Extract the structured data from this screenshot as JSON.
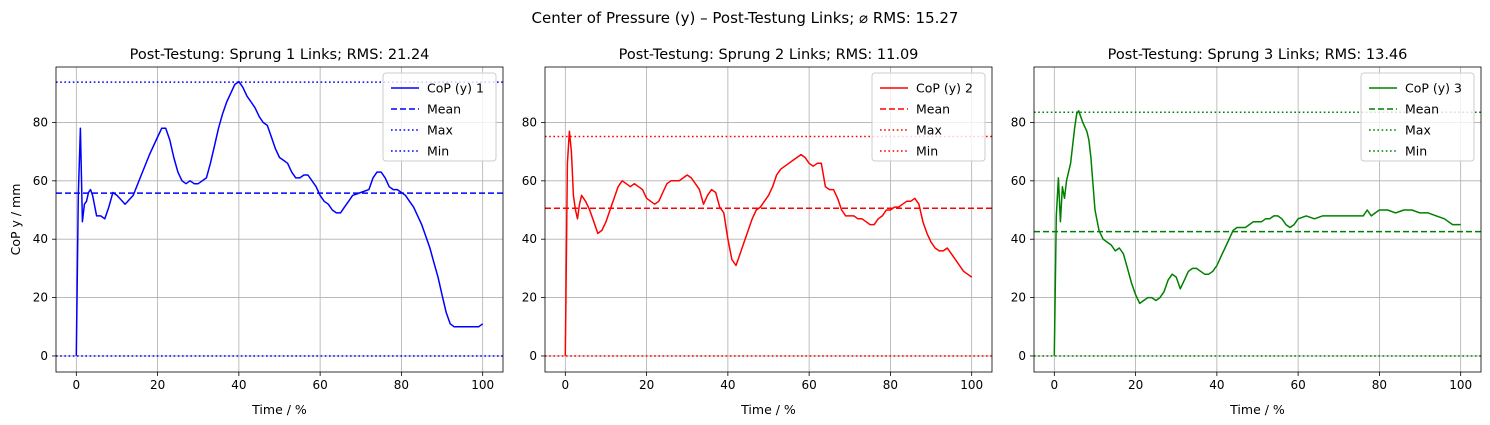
{
  "suptitle": "Center of Pressure (y) – Post-Testung Links; ⌀ RMS: 15.27",
  "chart_data": [
    {
      "type": "line",
      "title": "Post-Testung: Sprung 1 Links; RMS: 21.24",
      "xlabel": "Time / %",
      "ylabel": "CoP y / mm",
      "xlim": [
        -5,
        105
      ],
      "ylim": [
        -5.5,
        99
      ],
      "xticks": [
        0,
        20,
        40,
        60,
        80,
        100
      ],
      "yticks": [
        0,
        20,
        40,
        60,
        80
      ],
      "grid": true,
      "legend_position": "upper right",
      "color": "#0000ff",
      "series": [
        {
          "name": "CoP (y) 1",
          "style": "solid",
          "x": [
            0,
            0.5,
            1,
            1.5,
            2,
            2.5,
            3,
            3.5,
            4,
            5,
            6,
            7,
            8,
            9,
            10,
            12,
            14,
            16,
            18,
            20,
            21,
            22,
            23,
            24,
            25,
            26,
            27,
            28,
            29,
            30,
            32,
            33,
            34,
            35,
            36,
            37,
            38,
            39,
            40,
            41,
            42,
            43,
            44,
            45,
            46,
            47,
            48,
            49,
            50,
            51,
            52,
            53,
            54,
            55,
            56,
            57,
            58,
            59,
            60,
            61,
            62,
            63,
            64,
            65,
            66,
            67,
            68,
            70,
            72,
            73,
            74,
            75,
            76,
            77,
            78,
            79,
            80,
            81,
            82,
            83,
            84,
            85,
            86,
            87,
            88,
            89,
            90,
            91,
            92,
            93,
            94,
            95,
            96,
            97,
            98,
            99,
            100
          ],
          "y": [
            0,
            55,
            78,
            46,
            52,
            53,
            56,
            57,
            55,
            48,
            48,
            47,
            51,
            56,
            55,
            52,
            55,
            62,
            69,
            75,
            78,
            78,
            74,
            68,
            63,
            60,
            59,
            60,
            59,
            59,
            61,
            66,
            72,
            78,
            83,
            87,
            90,
            93,
            94,
            92,
            89,
            87,
            85,
            82,
            80,
            79,
            75,
            71,
            68,
            67,
            66,
            63,
            61,
            61,
            62,
            62,
            60,
            58,
            55,
            53,
            52,
            50,
            49,
            49,
            51,
            53,
            55,
            56,
            57,
            61,
            63,
            63,
            61,
            58,
            57,
            57,
            56,
            55,
            53,
            51,
            48,
            45,
            41,
            37,
            32,
            27,
            21,
            15,
            11,
            10,
            10,
            10,
            10,
            10,
            10,
            10,
            11
          ]
        },
        {
          "name": "Mean",
          "style": "dashed",
          "y_const": 55.8
        },
        {
          "name": "Max",
          "style": "dotted",
          "y_const": 93.8
        },
        {
          "name": "Min",
          "style": "dotted",
          "y_const": 0
        }
      ]
    },
    {
      "type": "line",
      "title": "Post-Testung: Sprung 2 Links; RMS: 11.09",
      "xlabel": "Time / %",
      "ylabel": "",
      "xlim": [
        -5,
        105
      ],
      "ylim": [
        -5.5,
        99
      ],
      "xticks": [
        0,
        20,
        40,
        60,
        80,
        100
      ],
      "yticks": [
        0,
        20,
        40,
        60,
        80
      ],
      "grid": true,
      "legend_position": "upper right",
      "color": "#ff0000",
      "series": [
        {
          "name": "CoP (y) 2",
          "style": "solid",
          "x": [
            0,
            0.5,
            1,
            1.5,
            2,
            2.5,
            3,
            3.5,
            4,
            5,
            6,
            7,
            8,
            9,
            10,
            11,
            12,
            13,
            14,
            15,
            16,
            17,
            18,
            19,
            20,
            21,
            22,
            23,
            24,
            25,
            26,
            27,
            28,
            29,
            30,
            31,
            32,
            33,
            34,
            35,
            36,
            37,
            38,
            39,
            40,
            41,
            42,
            43,
            44,
            45,
            46,
            47,
            48,
            49,
            50,
            51,
            52,
            53,
            54,
            55,
            56,
            57,
            58,
            59,
            60,
            61,
            62,
            63,
            64,
            65,
            66,
            67,
            68,
            69,
            70,
            71,
            72,
            73,
            74,
            75,
            76,
            77,
            78,
            79,
            80,
            81,
            82,
            83,
            84,
            85,
            86,
            87,
            88,
            89,
            90,
            91,
            92,
            93,
            94,
            95,
            96,
            97,
            98,
            99,
            100
          ],
          "y": [
            0,
            66,
            77,
            70,
            55,
            50,
            47,
            52,
            55,
            53,
            50,
            46,
            42,
            43,
            46,
            50,
            54,
            58,
            60,
            59,
            58,
            59,
            58,
            57,
            54,
            53,
            52,
            53,
            56,
            59,
            60,
            60,
            60,
            61,
            62,
            61,
            59,
            57,
            52,
            55,
            57,
            56,
            51,
            49,
            40,
            33,
            31,
            35,
            39,
            43,
            47,
            50,
            51,
            53,
            55,
            58,
            62,
            64,
            65,
            66,
            67,
            68,
            69,
            68,
            66,
            65,
            66,
            66,
            58,
            57,
            57,
            54,
            50,
            48,
            48,
            48,
            47,
            47,
            46,
            45,
            45,
            47,
            48,
            50,
            50,
            51,
            51,
            52,
            53,
            53,
            54,
            52,
            46,
            42,
            39,
            37,
            36,
            36,
            37,
            35,
            33,
            31,
            29,
            28,
            27
          ]
        },
        {
          "name": "Mean",
          "style": "dashed",
          "y_const": 50.6
        },
        {
          "name": "Max",
          "style": "dotted",
          "y_const": 75.2
        },
        {
          "name": "Min",
          "style": "dotted",
          "y_const": 0
        }
      ]
    },
    {
      "type": "line",
      "title": "Post-Testung: Sprung 3 Links; RMS: 13.46",
      "xlabel": "Time / %",
      "ylabel": "",
      "xlim": [
        -5,
        105
      ],
      "ylim": [
        -5.5,
        99
      ],
      "xticks": [
        0,
        20,
        40,
        60,
        80,
        100
      ],
      "yticks": [
        0,
        20,
        40,
        60,
        80
      ],
      "grid": true,
      "legend_position": "upper right",
      "color": "#008000",
      "series": [
        {
          "name": "CoP (y) 3",
          "style": "solid",
          "x": [
            0,
            0.5,
            1,
            1.5,
            2,
            2.5,
            3,
            4,
            5,
            5.5,
            6,
            6.5,
            7,
            8,
            8.5,
            9,
            10,
            11,
            12,
            13,
            14,
            15,
            16,
            17,
            18,
            19,
            20,
            21,
            22,
            23,
            24,
            25,
            26,
            27,
            28,
            29,
            30,
            31,
            32,
            33,
            34,
            35,
            36,
            37,
            38,
            39,
            40,
            41,
            42,
            43,
            44,
            45,
            46,
            47,
            48,
            49,
            50,
            51,
            52,
            53,
            54,
            55,
            56,
            57,
            58,
            59,
            60,
            62,
            64,
            66,
            68,
            70,
            72,
            74,
            76,
            77,
            78,
            79,
            80,
            82,
            84,
            86,
            88,
            90,
            92,
            94,
            96,
            98,
            99,
            100
          ],
          "y": [
            0,
            48,
            61,
            46,
            58,
            54,
            60,
            66,
            78,
            83,
            84,
            82,
            80,
            77,
            74,
            68,
            50,
            43,
            40,
            39,
            38,
            36,
            37,
            35,
            30,
            25,
            21,
            18,
            19,
            20,
            20,
            19,
            20,
            22,
            26,
            28,
            27,
            23,
            26,
            29,
            30,
            30,
            29,
            28,
            28,
            29,
            31,
            34,
            37,
            40,
            43,
            44,
            44,
            44,
            45,
            46,
            46,
            46,
            47,
            47,
            48,
            48,
            47,
            45,
            44,
            45,
            47,
            48,
            47,
            48,
            48,
            48,
            48,
            48,
            48,
            50,
            48,
            49,
            50,
            50,
            49,
            50,
            50,
            49,
            49,
            48,
            47,
            45,
            45,
            45
          ]
        },
        {
          "name": "Mean",
          "style": "dashed",
          "y_const": 42.6
        },
        {
          "name": "Max",
          "style": "dotted",
          "y_const": 83.5
        },
        {
          "name": "Min",
          "style": "dotted",
          "y_const": 0
        }
      ]
    }
  ]
}
